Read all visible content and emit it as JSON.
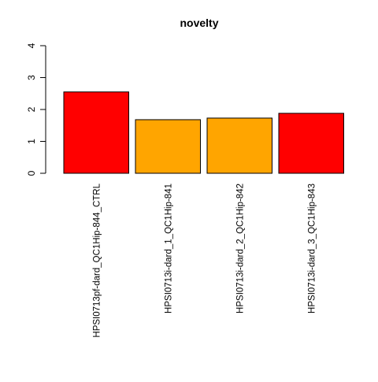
{
  "chart_data": {
    "type": "bar",
    "title": "novelty",
    "xlabel": "",
    "ylabel": "",
    "ylim": [
      0,
      4
    ],
    "yticks": [
      "0",
      "1",
      "2",
      "3",
      "4"
    ],
    "categories": [
      "HPSI0713pf-dard_QC1Hip-844_CTRL",
      "HPSI0713i-dard_1_QC1Hip-841",
      "HPSI0713i-dard_2_QC1Hip-842",
      "HPSI0713i-dard_3_QC1Hip-843"
    ],
    "values": [
      2.55,
      1.68,
      1.73,
      1.88
    ],
    "colors": [
      "#ff0000",
      "#ffa500",
      "#ffa500",
      "#ff0000"
    ],
    "grid": false,
    "legend": "none"
  }
}
